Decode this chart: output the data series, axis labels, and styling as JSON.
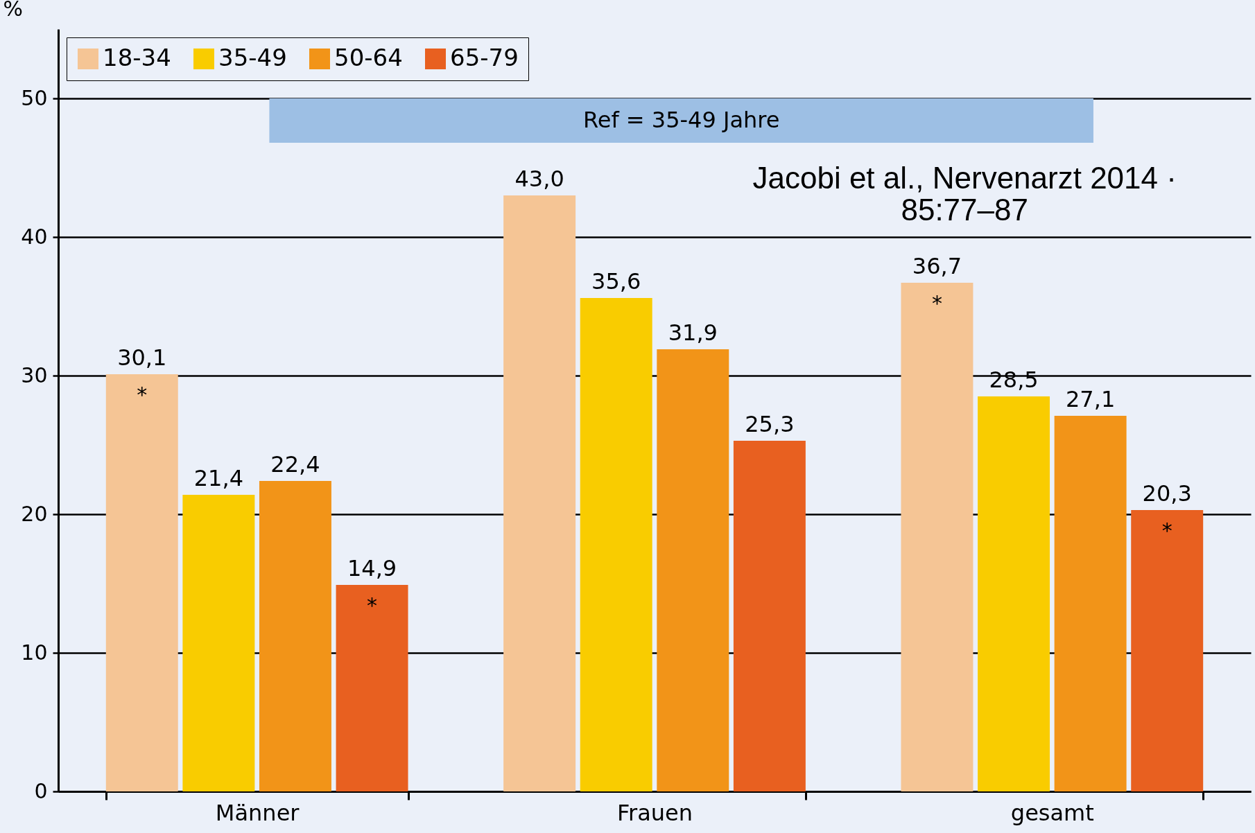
{
  "chart_data": {
    "type": "bar",
    "ylabel": "%",
    "categories": [
      "Männer",
      "Frauen",
      "gesamt"
    ],
    "series": [
      {
        "name": "18-34",
        "color": "#f5c595",
        "values": [
          30.1,
          43.0,
          36.7
        ],
        "value_labels": [
          "30,1",
          "43,0",
          "36,7"
        ]
      },
      {
        "name": "35-49",
        "color": "#f9cc00",
        "values": [
          21.4,
          35.6,
          28.5
        ],
        "value_labels": [
          "21,4",
          "35,6",
          "28,5"
        ]
      },
      {
        "name": "50-64",
        "color": "#f29418",
        "values": [
          22.4,
          31.9,
          27.1
        ],
        "value_labels": [
          "22,4",
          "31,9",
          "27,1"
        ]
      },
      {
        "name": "65-79",
        "color": "#e86020",
        "values": [
          14.9,
          25.3,
          20.3
        ],
        "value_labels": [
          "14,9",
          "25,3",
          "20,3"
        ]
      }
    ],
    "ylim": [
      0,
      55
    ],
    "yticks": [
      0,
      10,
      20,
      30,
      40,
      50
    ],
    "grid": "y",
    "legend": "top left",
    "bands": [
      {
        "axis": "y",
        "from": 46.8,
        "to": 50,
        "label": "Ref = 35-49 Jahre",
        "color": "#9dbfe4"
      }
    ],
    "annotations": [
      "*",
      "*",
      "*",
      "*",
      "Jacobi et al., Nervenarzt 2014 ·\n85:77–87"
    ]
  }
}
